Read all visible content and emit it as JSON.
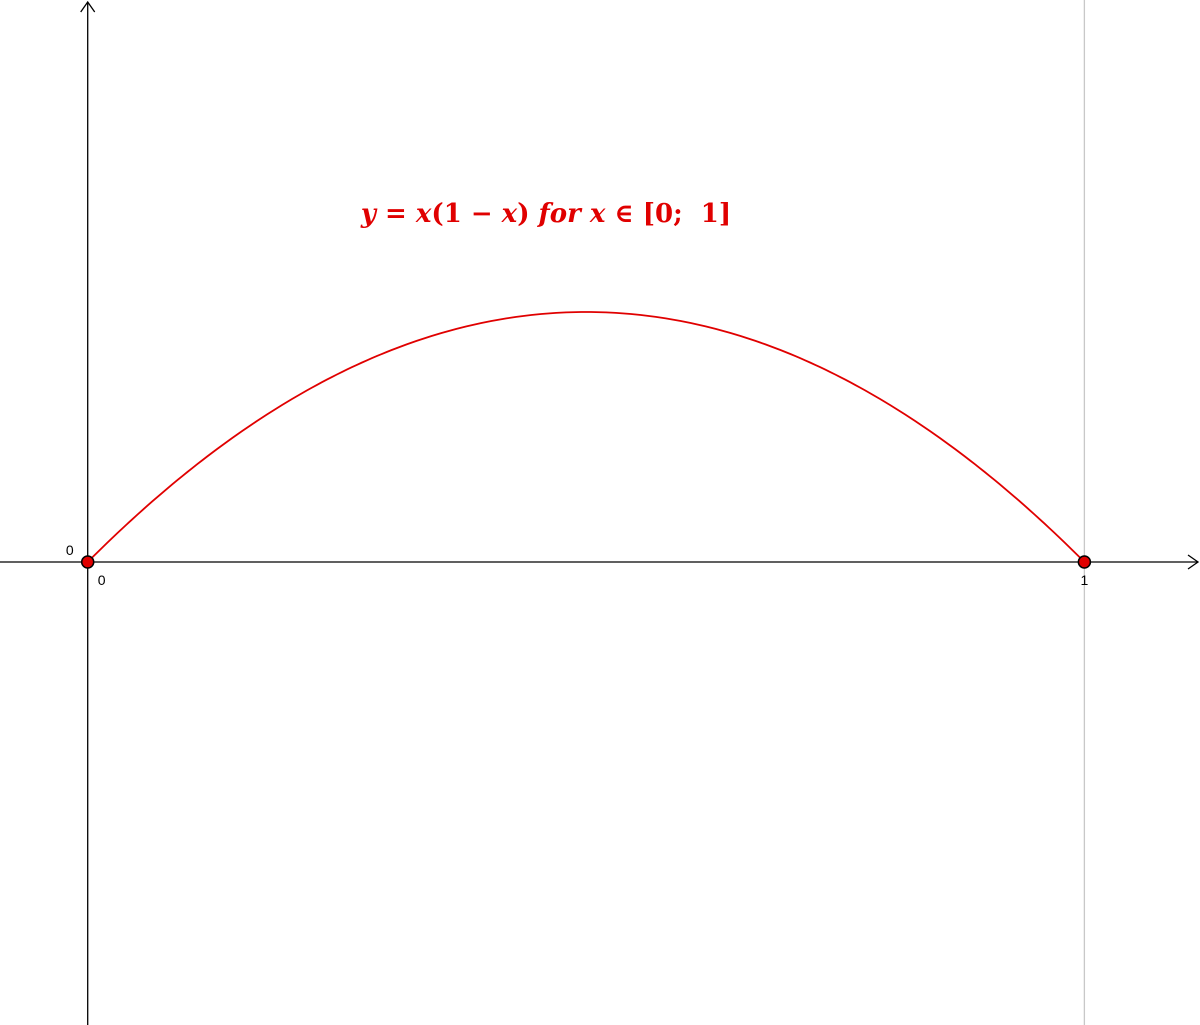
{
  "chart_data": {
    "type": "line",
    "title": "",
    "xlabel": "",
    "ylabel": "",
    "x_range": [
      -0.088,
      1.116
    ],
    "y_range": [
      -0.463,
      0.562
    ],
    "grid": false,
    "function": {
      "expression": "y = x(1 − x)",
      "domain": [
        0,
        1
      ],
      "color": "#e00000"
    },
    "series": [
      {
        "x": [
          0,
          0.05,
          0.1,
          0.15,
          0.2,
          0.25,
          0.3,
          0.35,
          0.4,
          0.45,
          0.5,
          0.55,
          0.6,
          0.65,
          0.7,
          0.75,
          0.8,
          0.85,
          0.9,
          0.95,
          1
        ],
        "y": [
          0,
          0.0475,
          0.09,
          0.1275,
          0.16,
          0.1875,
          0.21,
          0.2275,
          0.24,
          0.2475,
          0.25,
          0.2475,
          0.24,
          0.2275,
          0.21,
          0.1875,
          0.16,
          0.1275,
          0.09,
          0.0475,
          0
        ]
      }
    ],
    "points": [
      {
        "x": 0,
        "y": 0,
        "color": "#e00000"
      },
      {
        "x": 1,
        "y": 0,
        "color": "#e00000"
      }
    ],
    "x_ticks": [
      {
        "value": 0,
        "label": "0"
      },
      {
        "value": 1,
        "label": "1"
      }
    ],
    "y_ticks": [
      {
        "value": 0,
        "label": "0"
      }
    ],
    "vertical_line": {
      "x": 1,
      "color": "#c8c8c8"
    },
    "annotation": {
      "text_y": "y",
      "text_eq": " = ",
      "text_x1": "x",
      "text_open": "(1 − ",
      "text_x2": "x",
      "text_close": ") ",
      "text_for": "for",
      "text_sp": " ",
      "text_x3": "x",
      "text_in": " ∈ [0;  1]",
      "anchor": {
        "x": 0.5,
        "y": 0.34
      },
      "color": "#e00000"
    }
  }
}
